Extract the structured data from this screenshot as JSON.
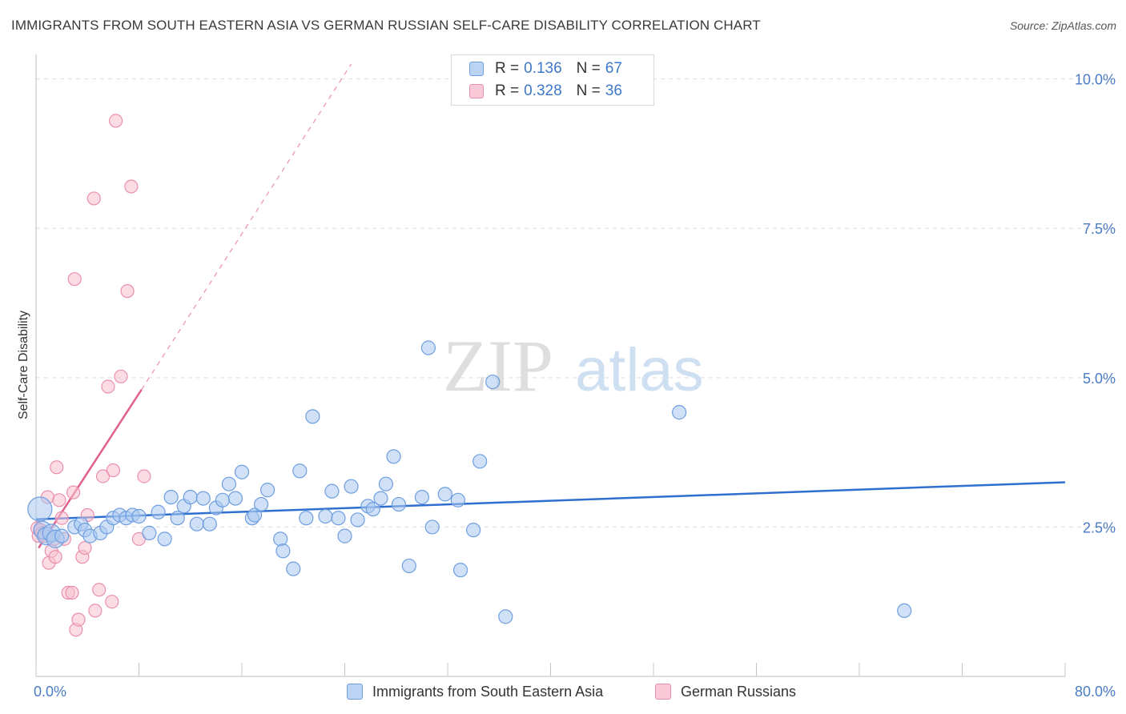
{
  "title": "IMMIGRANTS FROM SOUTH EASTERN ASIA VS GERMAN RUSSIAN SELF-CARE DISABILITY CORRELATION CHART",
  "source": "Source: ZipAtlas.com",
  "watermark": {
    "zip": "ZIP",
    "atlas": "atlas"
  },
  "legend": {
    "rows": [
      {
        "r_label": "R =",
        "r_value": "0.136",
        "n_label": "N =",
        "n_value": "67"
      },
      {
        "r_label": "R =",
        "r_value": "0.328",
        "n_label": "N =",
        "n_value": "36"
      }
    ]
  },
  "colors": {
    "blue_fill": "#a9c8f0",
    "blue_stroke": "#6e9ee0",
    "blue_line": "#2f6fcf",
    "pink_fill": "#f7bfd0",
    "pink_stroke": "#ea8fab",
    "pink_line": "#e0608a",
    "grid": "#dcdcdc",
    "tick_text": "#4a7cc4"
  },
  "chart_data": {
    "type": "scatter",
    "title": "IMMIGRANTS FROM SOUTH EASTERN ASIA VS GERMAN RUSSIAN SELF-CARE DISABILITY CORRELATION CHART",
    "xlabel": "",
    "ylabel": "Self-Care Disability",
    "xlim": [
      0,
      80
    ],
    "ylim": [
      0,
      10.25
    ],
    "x_tick_labels": [
      "0.0%",
      "80.0%"
    ],
    "y_ticks": [
      2.5,
      5.0,
      7.5,
      10.0
    ],
    "y_tick_labels": [
      "2.5%",
      "5.0%",
      "7.5%",
      "10.0%"
    ],
    "series": [
      {
        "name": "Immigrants from South Eastern Asia",
        "color": "blue",
        "points": [
          [
            0.3,
            2.8
          ],
          [
            0.5,
            2.45
          ],
          [
            0.8,
            2.35
          ],
          [
            1.2,
            2.4
          ],
          [
            1.5,
            2.3
          ],
          [
            2.0,
            2.35
          ],
          [
            3.0,
            2.5
          ],
          [
            3.5,
            2.55
          ],
          [
            3.8,
            2.45
          ],
          [
            4.2,
            2.35
          ],
          [
            5.0,
            2.4
          ],
          [
            5.5,
            2.5
          ],
          [
            6.0,
            2.65
          ],
          [
            6.5,
            2.7
          ],
          [
            7.0,
            2.65
          ],
          [
            7.5,
            2.7
          ],
          [
            8.0,
            2.68
          ],
          [
            8.8,
            2.4
          ],
          [
            9.5,
            2.75
          ],
          [
            10.0,
            2.3
          ],
          [
            10.5,
            3.0
          ],
          [
            11.0,
            2.65
          ],
          [
            11.5,
            2.85
          ],
          [
            12.0,
            3.0
          ],
          [
            12.5,
            2.55
          ],
          [
            13.0,
            2.98
          ],
          [
            13.5,
            2.55
          ],
          [
            14.0,
            2.82
          ],
          [
            14.5,
            2.95
          ],
          [
            15.0,
            3.22
          ],
          [
            15.5,
            2.98
          ],
          [
            16.0,
            3.42
          ],
          [
            16.8,
            2.65
          ],
          [
            17.0,
            2.7
          ],
          [
            17.5,
            2.88
          ],
          [
            18.0,
            3.12
          ],
          [
            19.0,
            2.3
          ],
          [
            19.2,
            2.1
          ],
          [
            20.0,
            1.8
          ],
          [
            20.5,
            3.44
          ],
          [
            21.0,
            2.65
          ],
          [
            21.5,
            4.35
          ],
          [
            22.5,
            2.68
          ],
          [
            23.0,
            3.1
          ],
          [
            23.5,
            2.65
          ],
          [
            24.0,
            2.35
          ],
          [
            24.5,
            3.18
          ],
          [
            25.0,
            2.62
          ],
          [
            25.8,
            2.85
          ],
          [
            26.2,
            2.8
          ],
          [
            26.8,
            2.98
          ],
          [
            27.2,
            3.22
          ],
          [
            27.8,
            3.68
          ],
          [
            28.2,
            2.88
          ],
          [
            29.0,
            1.85
          ],
          [
            30.0,
            3.0
          ],
          [
            30.5,
            5.5
          ],
          [
            30.8,
            2.5
          ],
          [
            31.8,
            3.05
          ],
          [
            32.8,
            2.95
          ],
          [
            33.0,
            1.78
          ],
          [
            34.0,
            2.45
          ],
          [
            34.5,
            3.6
          ],
          [
            35.5,
            4.93
          ],
          [
            36.5,
            1.0
          ],
          [
            50.0,
            4.42
          ],
          [
            67.5,
            1.1
          ]
        ],
        "trend": {
          "x": [
            0,
            80
          ],
          "y": [
            2.63,
            3.25
          ]
        }
      },
      {
        "name": "German Russians",
        "color": "pink",
        "points": [
          [
            0.1,
            2.48
          ],
          [
            0.2,
            2.35
          ],
          [
            0.35,
            2.45
          ],
          [
            0.5,
            2.4
          ],
          [
            0.7,
            2.35
          ],
          [
            0.9,
            3.0
          ],
          [
            1.0,
            1.9
          ],
          [
            1.2,
            2.1
          ],
          [
            1.4,
            2.3
          ],
          [
            1.5,
            2.0
          ],
          [
            1.6,
            3.5
          ],
          [
            1.8,
            2.95
          ],
          [
            2.0,
            2.65
          ],
          [
            2.2,
            2.3
          ],
          [
            2.5,
            1.4
          ],
          [
            2.8,
            1.4
          ],
          [
            2.9,
            3.08
          ],
          [
            3.0,
            6.65
          ],
          [
            3.1,
            0.78
          ],
          [
            3.3,
            0.95
          ],
          [
            3.6,
            2.0
          ],
          [
            3.8,
            2.15
          ],
          [
            4.0,
            2.7
          ],
          [
            4.5,
            8.0
          ],
          [
            4.6,
            1.1
          ],
          [
            4.9,
            1.45
          ],
          [
            5.2,
            3.35
          ],
          [
            5.6,
            4.85
          ],
          [
            5.9,
            1.25
          ],
          [
            6.0,
            3.45
          ],
          [
            6.2,
            9.3
          ],
          [
            6.6,
            5.02
          ],
          [
            7.1,
            6.45
          ],
          [
            7.4,
            8.2
          ],
          [
            8.0,
            2.3
          ],
          [
            8.4,
            3.35
          ]
        ],
        "trend": {
          "x": [
            0.2,
            8.2
          ],
          "y": [
            2.15,
            4.8
          ]
        },
        "trend_extension": {
          "x": [
            8.2,
            24.5
          ],
          "y": [
            4.8,
            10.25
          ]
        }
      }
    ]
  },
  "bottom_legend": {
    "items": [
      {
        "label": "Immigrants from South Eastern Asia"
      },
      {
        "label": "German Russians"
      }
    ]
  }
}
